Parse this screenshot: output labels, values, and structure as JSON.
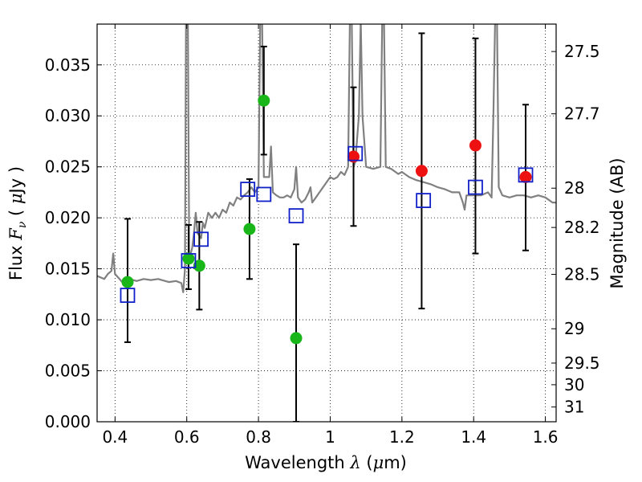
{
  "chart_data": {
    "type": "scatter",
    "title": "",
    "xlabel": {
      "prefix": "Wavelength  ",
      "symbol": "λ",
      "unit_open": " (",
      "unit_mu": "μ",
      "unit_close": "m)"
    },
    "ylabel": {
      "prefix": "Flux  ",
      "symbol": "F",
      "sub": "ν",
      "unit_open": "  ( ",
      "unit_mu": "μ",
      "unit_close": "Jy )"
    },
    "y2label": "Magnitude (AB)",
    "xlim": [
      0.35,
      1.63
    ],
    "ylim": [
      0.0,
      0.039
    ],
    "grid": true,
    "grid_style": "dotted",
    "x_ticks": [
      {
        "value": 0.4,
        "label": "0.4"
      },
      {
        "value": 0.6,
        "label": "0.6"
      },
      {
        "value": 0.8,
        "label": "0.8"
      },
      {
        "value": 1.0,
        "label": "1"
      },
      {
        "value": 1.2,
        "label": "1.2"
      },
      {
        "value": 1.4,
        "label": "1.4"
      },
      {
        "value": 1.6,
        "label": "1.6"
      }
    ],
    "y_ticks": [
      {
        "value": 0.0,
        "label": "0.000"
      },
      {
        "value": 0.005,
        "label": "0.005"
      },
      {
        "value": 0.01,
        "label": "0.010"
      },
      {
        "value": 0.015,
        "label": "0.015"
      },
      {
        "value": 0.02,
        "label": "0.020"
      },
      {
        "value": 0.025,
        "label": "0.025"
      },
      {
        "value": 0.03,
        "label": "0.030"
      },
      {
        "value": 0.035,
        "label": "0.035"
      }
    ],
    "y2_ticks": [
      {
        "magnitude": 27.5,
        "label": "27.5"
      },
      {
        "magnitude": 27.7,
        "label": "27.7"
      },
      {
        "magnitude": 28.0,
        "label": "28"
      },
      {
        "magnitude": 28.2,
        "label": "28.2"
      },
      {
        "magnitude": 28.5,
        "label": "28.5"
      },
      {
        "magnitude": 29.0,
        "label": "29"
      },
      {
        "magnitude": 29.5,
        "label": "29.5"
      },
      {
        "magnitude": 30.0,
        "label": "30"
      },
      {
        "magnitude": 31.0,
        "label": "31"
      }
    ],
    "colors": {
      "spectrum": "#808080",
      "green": "#19b619",
      "red": "#ee1111",
      "box": "#1020c8",
      "errorbar": "#000000"
    },
    "spectrum": [
      [
        0.35,
        0.0143
      ],
      [
        0.37,
        0.014
      ],
      [
        0.38,
        0.0145
      ],
      [
        0.39,
        0.0148
      ],
      [
        0.395,
        0.0165
      ],
      [
        0.4,
        0.0145
      ],
      [
        0.42,
        0.0137
      ],
      [
        0.44,
        0.014
      ],
      [
        0.46,
        0.0138
      ],
      [
        0.48,
        0.014
      ],
      [
        0.5,
        0.0139
      ],
      [
        0.52,
        0.014
      ],
      [
        0.55,
        0.0137
      ],
      [
        0.57,
        0.0138
      ],
      [
        0.585,
        0.0136
      ],
      [
        0.59,
        0.0127
      ],
      [
        0.595,
        0.015
      ],
      [
        0.598,
        0.0395
      ],
      [
        0.603,
        0.0395
      ],
      [
        0.607,
        0.016
      ],
      [
        0.615,
        0.017
      ],
      [
        0.62,
        0.0185
      ],
      [
        0.625,
        0.0205
      ],
      [
        0.63,
        0.0185
      ],
      [
        0.64,
        0.018
      ],
      [
        0.645,
        0.0195
      ],
      [
        0.65,
        0.019
      ],
      [
        0.66,
        0.0205
      ],
      [
        0.67,
        0.02
      ],
      [
        0.68,
        0.0205
      ],
      [
        0.69,
        0.02
      ],
      [
        0.7,
        0.0208
      ],
      [
        0.71,
        0.0205
      ],
      [
        0.72,
        0.0215
      ],
      [
        0.73,
        0.0212
      ],
      [
        0.74,
        0.022
      ],
      [
        0.75,
        0.0218
      ],
      [
        0.76,
        0.0222
      ],
      [
        0.77,
        0.0225
      ],
      [
        0.78,
        0.023
      ],
      [
        0.79,
        0.0225
      ],
      [
        0.8,
        0.023
      ],
      [
        0.805,
        0.0395
      ],
      [
        0.81,
        0.0395
      ],
      [
        0.815,
        0.024
      ],
      [
        0.83,
        0.024
      ],
      [
        0.835,
        0.027
      ],
      [
        0.84,
        0.0225
      ],
      [
        0.85,
        0.0222
      ],
      [
        0.86,
        0.022
      ],
      [
        0.87,
        0.022
      ],
      [
        0.88,
        0.0222
      ],
      [
        0.89,
        0.022
      ],
      [
        0.9,
        0.0228
      ],
      [
        0.905,
        0.025
      ],
      [
        0.91,
        0.022
      ],
      [
        0.92,
        0.0215
      ],
      [
        0.93,
        0.0218
      ],
      [
        0.94,
        0.0225
      ],
      [
        0.945,
        0.023
      ],
      [
        0.95,
        0.0215
      ],
      [
        0.96,
        0.022
      ],
      [
        0.97,
        0.0225
      ],
      [
        0.98,
        0.023
      ],
      [
        1.0,
        0.024
      ],
      [
        1.01,
        0.0238
      ],
      [
        1.02,
        0.024
      ],
      [
        1.03,
        0.0245
      ],
      [
        1.04,
        0.0242
      ],
      [
        1.05,
        0.025
      ],
      [
        1.055,
        0.0395
      ],
      [
        1.06,
        0.0395
      ],
      [
        1.065,
        0.025
      ],
      [
        1.07,
        0.0255
      ],
      [
        1.08,
        0.03
      ],
      [
        1.085,
        0.0395
      ],
      [
        1.09,
        0.03
      ],
      [
        1.1,
        0.025
      ],
      [
        1.12,
        0.0248
      ],
      [
        1.14,
        0.025
      ],
      [
        1.145,
        0.0395
      ],
      [
        1.15,
        0.0395
      ],
      [
        1.155,
        0.025
      ],
      [
        1.17,
        0.0248
      ],
      [
        1.19,
        0.0243
      ],
      [
        1.2,
        0.0245
      ],
      [
        1.22,
        0.024
      ],
      [
        1.24,
        0.0237
      ],
      [
        1.26,
        0.0235
      ],
      [
        1.28,
        0.0233
      ],
      [
        1.3,
        0.023
      ],
      [
        1.32,
        0.0228
      ],
      [
        1.34,
        0.0225
      ],
      [
        1.36,
        0.0225
      ],
      [
        1.37,
        0.0215
      ],
      [
        1.375,
        0.0208
      ],
      [
        1.38,
        0.0222
      ],
      [
        1.4,
        0.0222
      ],
      [
        1.42,
        0.0222
      ],
      [
        1.44,
        0.0225
      ],
      [
        1.45,
        0.022
      ],
      [
        1.455,
        0.03
      ],
      [
        1.46,
        0.0395
      ],
      [
        1.465,
        0.0395
      ],
      [
        1.47,
        0.023
      ],
      [
        1.48,
        0.0222
      ],
      [
        1.5,
        0.022
      ],
      [
        1.52,
        0.0222
      ],
      [
        1.54,
        0.0222
      ],
      [
        1.56,
        0.022
      ],
      [
        1.58,
        0.0222
      ],
      [
        1.6,
        0.022
      ],
      [
        1.62,
        0.0215
      ],
      [
        1.63,
        0.0215
      ]
    ],
    "series": [
      {
        "marker": "circle",
        "color": "green",
        "points": [
          {
            "x": 0.435,
            "y": 0.0137,
            "err_low": 0.0078,
            "err_high": 0.0199
          },
          {
            "x": 0.605,
            "y": 0.016,
            "err_low": 0.013,
            "err_high": 0.0193
          },
          {
            "x": 0.635,
            "y": 0.0153,
            "err_low": 0.011,
            "err_high": 0.0196
          },
          {
            "x": 0.775,
            "y": 0.0189,
            "err_low": 0.014,
            "err_high": 0.0238
          },
          {
            "x": 0.815,
            "y": 0.0315,
            "err_low": 0.0262,
            "err_high": 0.0368
          },
          {
            "x": 0.905,
            "y": 0.0082,
            "err_low": 0.0,
            "err_high": 0.0174
          }
        ]
      },
      {
        "marker": "circle",
        "color": "red",
        "points": [
          {
            "x": 1.065,
            "y": 0.026,
            "err_low": 0.0192,
            "err_high": 0.0328
          },
          {
            "x": 1.255,
            "y": 0.0246,
            "err_low": 0.0111,
            "err_high": 0.0381
          },
          {
            "x": 1.405,
            "y": 0.0271,
            "err_low": 0.0165,
            "err_high": 0.0376
          },
          {
            "x": 1.545,
            "y": 0.024,
            "err_low": 0.0168,
            "err_high": 0.0311
          }
        ]
      },
      {
        "marker": "open-square",
        "color": "box",
        "points": [
          {
            "x": 0.435,
            "y": 0.0124
          },
          {
            "x": 0.605,
            "y": 0.0158
          },
          {
            "x": 0.64,
            "y": 0.0179
          },
          {
            "x": 0.77,
            "y": 0.0228
          },
          {
            "x": 0.815,
            "y": 0.0223
          },
          {
            "x": 0.905,
            "y": 0.0202
          },
          {
            "x": 1.07,
            "y": 0.0263
          },
          {
            "x": 1.26,
            "y": 0.0217
          },
          {
            "x": 1.405,
            "y": 0.023
          },
          {
            "x": 1.545,
            "y": 0.0242
          }
        ]
      }
    ]
  }
}
